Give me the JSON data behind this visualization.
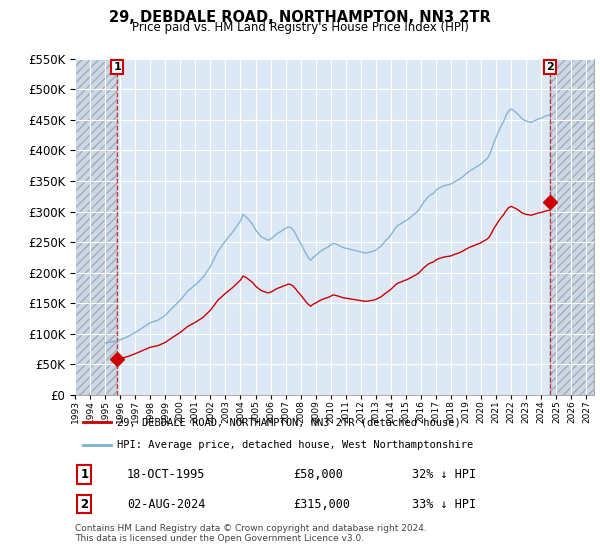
{
  "title": "29, DEBDALE ROAD, NORTHAMPTON, NN3 2TR",
  "subtitle": "Price paid vs. HM Land Registry's House Price Index (HPI)",
  "legend_line1": "29, DEBDALE ROAD, NORTHAMPTON, NN3 2TR (detached house)",
  "legend_line2": "HPI: Average price, detached house, West Northamptonshire",
  "sale1_date": "18-OCT-1995",
  "sale1_price": "£58,000",
  "sale1_hpi": "32% ↓ HPI",
  "sale2_date": "02-AUG-2024",
  "sale2_price": "£315,000",
  "sale2_hpi": "33% ↓ HPI",
  "footer": "Contains HM Land Registry data © Crown copyright and database right 2024.\nThis data is licensed under the Open Government Licence v3.0.",
  "sale_color": "#cc0000",
  "hpi_color": "#7aafd4",
  "background_color": "#ffffff",
  "plot_bg_color": "#dce9f5",
  "grid_color": "#ffffff",
  "ylim": [
    0,
    550000
  ],
  "yticks": [
    0,
    50000,
    100000,
    150000,
    200000,
    250000,
    300000,
    350000,
    400000,
    450000,
    500000,
    550000
  ],
  "sale1_x": 1995.8,
  "sale1_y": 58000,
  "sale2_x": 2024.58,
  "sale2_y": 315000,
  "hatch_left_end": 1995.8,
  "hatch_right_start": 2024.58,
  "xlim_left": 1993.0,
  "xlim_right": 2027.5
}
